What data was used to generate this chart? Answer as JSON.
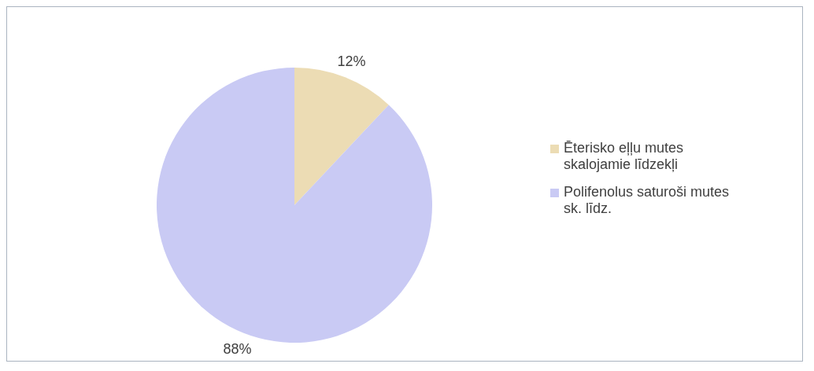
{
  "chart_data": {
    "type": "pie",
    "categories": [
      "Ēterisko eļļu mutes skalojamie līdzekļi",
      "Polifenolus saturoši mutes sk. līdz."
    ],
    "values": [
      12,
      88
    ],
    "colors": [
      "#ecdcb4",
      "#c9caf4"
    ],
    "value_labels": [
      "12%",
      "88%"
    ],
    "legend": "right"
  }
}
